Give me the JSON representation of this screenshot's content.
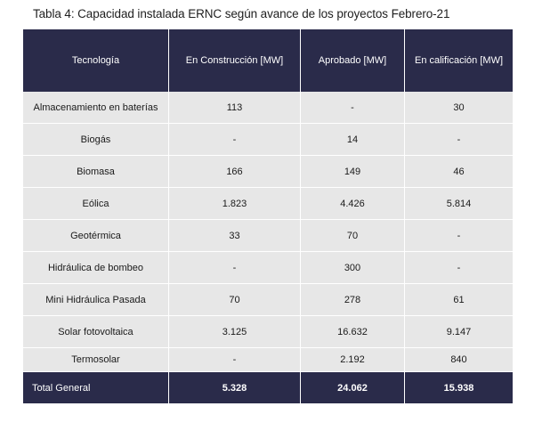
{
  "caption": "Tabla 4: Capacidad instalada ERNC según avance de los proyectos Febrero-21",
  "table": {
    "headers": [
      "Tecnología",
      "En Construcción [MW]",
      "Aprobado [MW]",
      "En calificación [MW]"
    ],
    "rows": [
      [
        "Almacenamiento en baterías",
        "113",
        "-",
        "30"
      ],
      [
        "Biogás",
        "-",
        "14",
        "-"
      ],
      [
        "Biomasa",
        "166",
        "149",
        "46"
      ],
      [
        "Eólica",
        "1.823",
        "4.426",
        "5.814"
      ],
      [
        "Geotérmica",
        "33",
        "70",
        "-"
      ],
      [
        "Hidráulica de bombeo",
        "-",
        "300",
        "-"
      ],
      [
        "Mini Hidráulica Pasada",
        "70",
        "278",
        "61"
      ],
      [
        "Solar fotovoltaica",
        "3.125",
        "16.632",
        "9.147"
      ],
      [
        "Termosolar",
        "-",
        "2.192",
        "840"
      ]
    ],
    "total": [
      "Total General",
      "5.328",
      "24.062",
      "15.938"
    ]
  },
  "colors": {
    "header_bg": "#2a2b4a",
    "row_bg": "#e7e7e7"
  }
}
